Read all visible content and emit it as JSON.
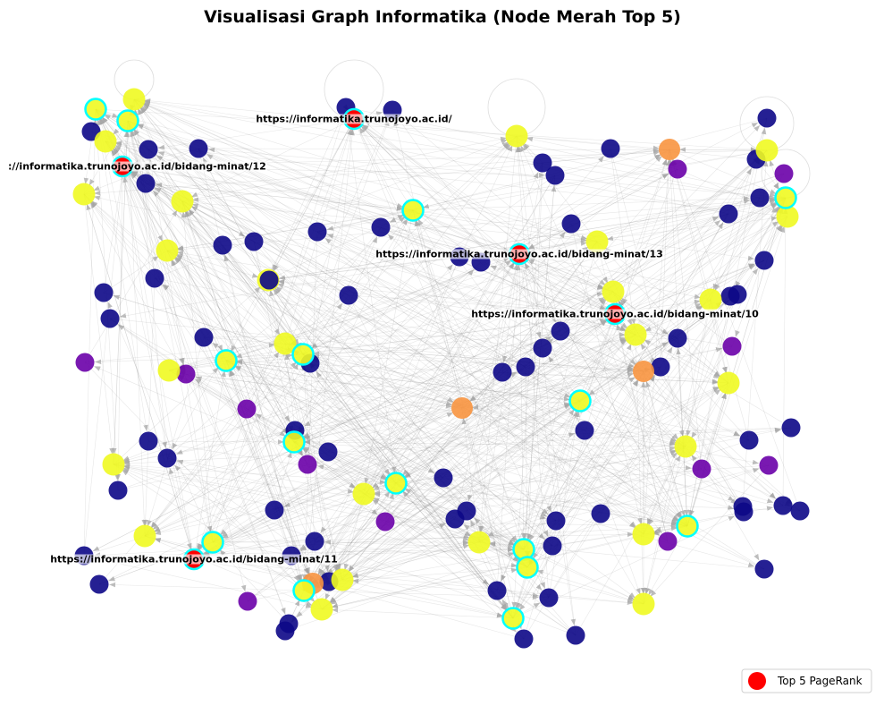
{
  "title": "Visualisasi Graph Informatika (Node Merah Top 5)",
  "top5_labels": [
    "https://informatika.trunojoyo.ac.id/",
    "://informatika.trunojoyo.ac.id/bidang-minat/12",
    "https://informatika.trunojoyo.ac.id/bidang-minat/13",
    "https://informatika.trunojoyo.ac.id/bidang-minat/10",
    "https://informatika.trunojoyo.ac.id/bidang-minat/11"
  ],
  "legend": {
    "label": "Top 5 PageRank",
    "marker_color": "#ff0000"
  },
  "colors": {
    "top5": "#ff0000",
    "highlight_ring": "#00ffff",
    "edge": "#888888",
    "arrow": "#a8a8a8",
    "node_scale": [
      "#0d0887",
      "#6a00a8",
      "#f89540",
      "#f0f921"
    ]
  }
}
